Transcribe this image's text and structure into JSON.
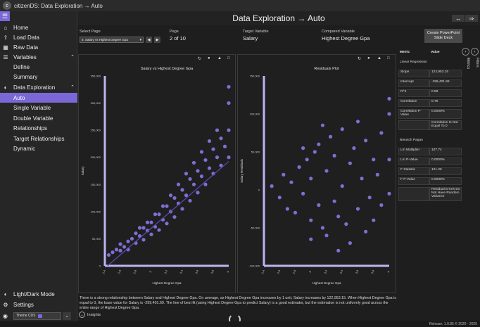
{
  "titlebar": {
    "app_title": "citizenDS: Data Exploration → Auto"
  },
  "header": {
    "title": "Data Exploration → Auto"
  },
  "sidebar": {
    "items": [
      {
        "label": "Home",
        "icon": "home-icon"
      },
      {
        "label": "Load Data",
        "icon": "upload-icon"
      },
      {
        "label": "Raw Data",
        "icon": "table-icon"
      },
      {
        "label": "Variables",
        "icon": "list-icon"
      },
      {
        "label": "Define"
      },
      {
        "label": "Summary"
      },
      {
        "label": "Data Exploration",
        "icon": "chart-icon"
      },
      {
        "label": "Auto"
      },
      {
        "label": "Single Variable"
      },
      {
        "label": "Double Variable"
      },
      {
        "label": "Relationships"
      },
      {
        "label": "Target Relationships"
      },
      {
        "label": "Dynamic"
      }
    ],
    "light_dark": "Light/Dark Mode",
    "settings": "Settings",
    "theme_value": "Theme CDS"
  },
  "controls": {
    "select_page_label": "Select Page",
    "select_page_value": "5. Salary vs Highest Degree Gpa",
    "page_label": "Page",
    "page_value": "2 of 10",
    "target_label": "Target Variable",
    "target_value": "Salary",
    "compared_label": "Compared Variable",
    "compared_value": "Highest Degree Gpa",
    "pptx_button": "Create PowerPoint Slide Deck"
  },
  "metrics": {
    "header_metric": "Metric",
    "header_value": "Value",
    "section1": "Linear Regression",
    "rows1": [
      {
        "k": "Slope",
        "v": "122,953.15"
      },
      {
        "k": "Intercept",
        "v": "-299,401.69"
      },
      {
        "k": "R^2",
        "v": "0.58"
      },
      {
        "k": "Correlation",
        "v": "0.76"
      },
      {
        "k": "Correlation P-Value",
        "v": "0.0000%"
      },
      {
        "k": "",
        "v": "Correlation Is Not Equal To 0"
      }
    ],
    "section2": "Breusch Pagan",
    "rows2": [
      {
        "k": "Lm Multiplier",
        "v": "107.74"
      },
      {
        "k": "Lm P-Value",
        "v": "0.0000%"
      },
      {
        "k": "F Statistic",
        "v": "121.28"
      },
      {
        "k": "F P-Value",
        "v": "0.0000%"
      },
      {
        "k": "",
        "v": "Residual Errors Do Not Have Random Variance"
      }
    ]
  },
  "side_tabs": {
    "metrics": "Metrics",
    "filters": "Filters"
  },
  "insight_text": "There is a strong relationship between Salary and Highest Degree Gpa. On average, as Highest Degree Gpa increases by 1 unit, Salary increases by 122,953.15. When Highest Degree Gpa is equal to 0, the base value for Salary is -299,401.69. The line of best fit (using Highest Degree Gpa to predict Salary) is a good estimator, but the estimation is not uniformly good across the entire range of Highest Degree Gpa.",
  "insights_button": "Insights",
  "release": "Release: 1.0.85   © 2020 - 2025",
  "colors": {
    "accent": "#7b68d6",
    "point": "#8a78e6"
  },
  "chart_data": [
    {
      "type": "scatter",
      "title": "Salary vs Highest Degree Gpa",
      "xlabel": "Highest Degree Gpa",
      "ylabel": "Salary",
      "xlim": [
        2.4,
        4.0
      ],
      "ylim": [
        0,
        350000
      ],
      "xticks": [
        "2.4",
        "2.6",
        "2.8",
        "3",
        "3.2",
        "3.4",
        "3.6",
        "3.8",
        "4"
      ],
      "yticks": [
        "0",
        "50,000",
        "100,000",
        "150,000",
        "200,000",
        "250,000",
        "300,000",
        "350,000"
      ],
      "trend_line": {
        "slope": 122953.15,
        "intercept": -299401.69
      },
      "points": [
        [
          2.45,
          20000
        ],
        [
          2.5,
          25000
        ],
        [
          2.55,
          30000
        ],
        [
          2.6,
          28000
        ],
        [
          2.6,
          40000
        ],
        [
          2.65,
          35000
        ],
        [
          2.7,
          45000
        ],
        [
          2.7,
          30000
        ],
        [
          2.75,
          50000
        ],
        [
          2.8,
          42000
        ],
        [
          2.8,
          60000
        ],
        [
          2.85,
          55000
        ],
        [
          2.9,
          48000
        ],
        [
          2.9,
          70000
        ],
        [
          2.95,
          65000
        ],
        [
          3.0,
          58000
        ],
        [
          3.0,
          80000
        ],
        [
          3.05,
          72000
        ],
        [
          3.1,
          66000
        ],
        [
          3.1,
          95000
        ],
        [
          3.15,
          85000
        ],
        [
          3.2,
          78000
        ],
        [
          3.2,
          110000
        ],
        [
          3.25,
          100000
        ],
        [
          3.3,
          90000
        ],
        [
          3.3,
          125000
        ],
        [
          3.35,
          115000
        ],
        [
          3.4,
          105000
        ],
        [
          3.4,
          140000
        ],
        [
          3.45,
          130000
        ],
        [
          3.5,
          120000
        ],
        [
          3.5,
          160000
        ],
        [
          3.55,
          150000
        ],
        [
          3.6,
          135000
        ],
        [
          3.6,
          175000
        ],
        [
          3.65,
          165000
        ],
        [
          3.7,
          150000
        ],
        [
          3.7,
          195000
        ],
        [
          3.75,
          180000
        ],
        [
          3.8,
          170000
        ],
        [
          3.8,
          215000
        ],
        [
          3.85,
          200000
        ],
        [
          3.9,
          185000
        ],
        [
          3.9,
          235000
        ],
        [
          3.95,
          220000
        ],
        [
          4.0,
          200000
        ],
        [
          4.0,
          250000
        ],
        [
          4.0,
          300000
        ],
        [
          4.0,
          330000
        ],
        [
          3.85,
          250000
        ],
        [
          3.75,
          230000
        ],
        [
          3.65,
          210000
        ],
        [
          3.55,
          190000
        ],
        [
          3.45,
          170000
        ],
        [
          3.35,
          150000
        ],
        [
          3.25,
          130000
        ],
        [
          3.15,
          110000
        ],
        [
          3.05,
          95000
        ],
        [
          2.95,
          80000
        ],
        [
          2.85,
          70000
        ]
      ]
    },
    {
      "type": "scatter",
      "title": "Residuals Plot",
      "xlabel": "Highest Degree Gpa",
      "ylabel": "Salary Residuals",
      "xlim": [
        2.4,
        4.0
      ],
      "ylim": [
        -100000,
        150000
      ],
      "xticks": [
        "2.4",
        "2.6",
        "2.8",
        "3",
        "3.2",
        "3.4",
        "3.6",
        "3.8",
        "4"
      ],
      "yticks": [
        "-100,000",
        "-50,000",
        "0",
        "50,000",
        "100,000",
        "150,000"
      ],
      "points": [
        [
          2.5,
          5000
        ],
        [
          2.6,
          -10000
        ],
        [
          2.65,
          20000
        ],
        [
          2.7,
          -25000
        ],
        [
          2.75,
          10000
        ],
        [
          2.8,
          -30000
        ],
        [
          2.85,
          30000
        ],
        [
          2.9,
          -5000
        ],
        [
          2.95,
          40000
        ],
        [
          3.0,
          -40000
        ],
        [
          3.0,
          15000
        ],
        [
          3.05,
          50000
        ],
        [
          3.1,
          -20000
        ],
        [
          3.1,
          60000
        ],
        [
          3.15,
          -50000
        ],
        [
          3.2,
          25000
        ],
        [
          3.2,
          -60000
        ],
        [
          3.25,
          70000
        ],
        [
          3.3,
          -15000
        ],
        [
          3.3,
          45000
        ],
        [
          3.35,
          -35000
        ],
        [
          3.4,
          80000
        ],
        [
          3.4,
          5000
        ],
        [
          3.45,
          -45000
        ],
        [
          3.5,
          35000
        ],
        [
          3.5,
          -70000
        ],
        [
          3.55,
          55000
        ],
        [
          3.6,
          -25000
        ],
        [
          3.6,
          90000
        ],
        [
          3.65,
          15000
        ],
        [
          3.7,
          -55000
        ],
        [
          3.7,
          65000
        ],
        [
          3.75,
          -10000
        ],
        [
          3.8,
          40000
        ],
        [
          3.8,
          -40000
        ],
        [
          3.85,
          20000
        ],
        [
          3.9,
          -20000
        ],
        [
          3.9,
          75000
        ],
        [
          4.0,
          100000
        ],
        [
          4.0,
          120000
        ],
        [
          4.0,
          40000
        ],
        [
          4.0,
          -5000
        ],
        [
          2.9,
          55000
        ],
        [
          3.0,
          -65000
        ],
        [
          3.15,
          85000
        ],
        [
          3.35,
          -80000
        ]
      ]
    }
  ]
}
